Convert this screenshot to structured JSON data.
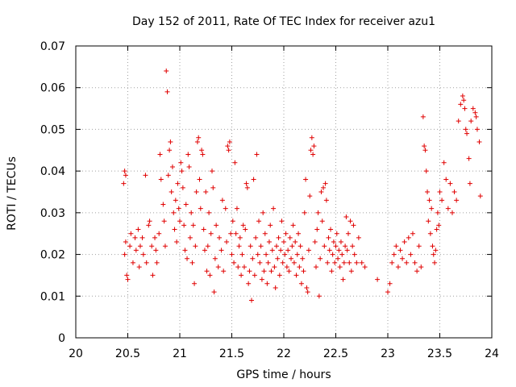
{
  "chart_data": {
    "type": "scatter",
    "title": "Day 152 of 2011, Rate Of TEC Index for receiver azu1",
    "xlabel": "GPS time / hours",
    "ylabel": "ROTI / TECUs",
    "xlim": [
      20,
      24
    ],
    "ylim": [
      0,
      0.07
    ],
    "x_ticks": [
      "20",
      "20.5",
      "21",
      "21.5",
      "22",
      "22.5",
      "23",
      "23.5",
      "24"
    ],
    "y_ticks": [
      "0",
      "0.01",
      "0.02",
      "0.03",
      "0.04",
      "0.05",
      "0.06",
      "0.07"
    ],
    "grid": true,
    "marker": "plus",
    "marker_color": "#e00000",
    "series": [
      {
        "points": [
          [
            20.46,
            0.037
          ],
          [
            20.47,
            0.04
          ],
          [
            20.48,
            0.039
          ],
          [
            20.47,
            0.02
          ],
          [
            20.48,
            0.023
          ],
          [
            20.49,
            0.015
          ],
          [
            20.5,
            0.014
          ],
          [
            20.52,
            0.022
          ],
          [
            20.53,
            0.025
          ],
          [
            20.55,
            0.018
          ],
          [
            20.57,
            0.024
          ],
          [
            20.58,
            0.021
          ],
          [
            20.6,
            0.026
          ],
          [
            20.61,
            0.017
          ],
          [
            20.62,
            0.022
          ],
          [
            20.64,
            0.024
          ],
          [
            20.65,
            0.02
          ],
          [
            20.67,
            0.039
          ],
          [
            20.68,
            0.018
          ],
          [
            20.7,
            0.027
          ],
          [
            20.71,
            0.028
          ],
          [
            20.73,
            0.022
          ],
          [
            20.74,
            0.015
          ],
          [
            20.76,
            0.024
          ],
          [
            20.77,
            0.021
          ],
          [
            20.78,
            0.018
          ],
          [
            20.8,
            0.025
          ],
          [
            20.81,
            0.044
          ],
          [
            20.82,
            0.038
          ],
          [
            20.84,
            0.032
          ],
          [
            20.85,
            0.028
          ],
          [
            20.86,
            0.022
          ],
          [
            20.87,
            0.064
          ],
          [
            20.88,
            0.059
          ],
          [
            20.89,
            0.039
          ],
          [
            20.9,
            0.045
          ],
          [
            20.91,
            0.047
          ],
          [
            20.92,
            0.035
          ],
          [
            20.93,
            0.041
          ],
          [
            20.94,
            0.03
          ],
          [
            20.95,
            0.026
          ],
          [
            20.96,
            0.033
          ],
          [
            20.97,
            0.023
          ],
          [
            20.98,
            0.037
          ],
          [
            20.99,
            0.031
          ],
          [
            21.0,
            0.028
          ],
          [
            21.01,
            0.042
          ],
          [
            21.02,
            0.04
          ],
          [
            21.03,
            0.036
          ],
          [
            21.04,
            0.027
          ],
          [
            21.05,
            0.021
          ],
          [
            21.06,
            0.032
          ],
          [
            21.07,
            0.019
          ],
          [
            21.08,
            0.044
          ],
          [
            21.09,
            0.041
          ],
          [
            21.1,
            0.024
          ],
          [
            21.11,
            0.03
          ],
          [
            21.12,
            0.018
          ],
          [
            21.13,
            0.027
          ],
          [
            21.14,
            0.013
          ],
          [
            21.15,
            0.022
          ],
          [
            21.16,
            0.035
          ],
          [
            21.17,
            0.047
          ],
          [
            21.18,
            0.048
          ],
          [
            21.19,
            0.038
          ],
          [
            21.2,
            0.031
          ],
          [
            21.21,
            0.045
          ],
          [
            21.22,
            0.044
          ],
          [
            21.23,
            0.026
          ],
          [
            21.24,
            0.021
          ],
          [
            21.25,
            0.035
          ],
          [
            21.26,
            0.016
          ],
          [
            21.27,
            0.022
          ],
          [
            21.28,
            0.03
          ],
          [
            21.29,
            0.015
          ],
          [
            21.3,
            0.025
          ],
          [
            21.31,
            0.04
          ],
          [
            21.32,
            0.036
          ],
          [
            21.33,
            0.011
          ],
          [
            21.34,
            0.019
          ],
          [
            21.35,
            0.027
          ],
          [
            21.37,
            0.017
          ],
          [
            21.38,
            0.024
          ],
          [
            21.4,
            0.021
          ],
          [
            21.41,
            0.033
          ],
          [
            21.42,
            0.016
          ],
          [
            21.44,
            0.031
          ],
          [
            21.45,
            0.023
          ],
          [
            21.46,
            0.046
          ],
          [
            21.47,
            0.045
          ],
          [
            21.48,
            0.047
          ],
          [
            21.49,
            0.025
          ],
          [
            21.5,
            0.02
          ],
          [
            21.51,
            0.028
          ],
          [
            21.52,
            0.018
          ],
          [
            21.53,
            0.042
          ],
          [
            21.54,
            0.025
          ],
          [
            21.55,
            0.031
          ],
          [
            21.56,
            0.017
          ],
          [
            21.57,
            0.022
          ],
          [
            21.58,
            0.024
          ],
          [
            21.59,
            0.015
          ],
          [
            21.6,
            0.02
          ],
          [
            21.61,
            0.027
          ],
          [
            21.62,
            0.017
          ],
          [
            21.63,
            0.026
          ],
          [
            21.64,
            0.037
          ],
          [
            21.65,
            0.036
          ],
          [
            21.66,
            0.013
          ],
          [
            21.67,
            0.016
          ],
          [
            21.68,
            0.022
          ],
          [
            21.69,
            0.009
          ],
          [
            21.7,
            0.019
          ],
          [
            21.71,
            0.038
          ],
          [
            21.72,
            0.015
          ],
          [
            21.73,
            0.024
          ],
          [
            21.74,
            0.044
          ],
          [
            21.75,
            0.02
          ],
          [
            21.76,
            0.028
          ],
          [
            21.77,
            0.018
          ],
          [
            21.78,
            0.022
          ],
          [
            21.79,
            0.014
          ],
          [
            21.8,
            0.03
          ],
          [
            21.81,
            0.016
          ],
          [
            21.82,
            0.025
          ],
          [
            21.83,
            0.02
          ],
          [
            21.84,
            0.013
          ],
          [
            21.85,
            0.018
          ],
          [
            21.86,
            0.023
          ],
          [
            21.87,
            0.027
          ],
          [
            21.88,
            0.016
          ],
          [
            21.89,
            0.021
          ],
          [
            21.9,
            0.031
          ],
          [
            21.91,
            0.017
          ],
          [
            21.92,
            0.012
          ],
          [
            21.93,
            0.022
          ],
          [
            21.94,
            0.019
          ],
          [
            21.95,
            0.024
          ],
          [
            21.96,
            0.015
          ],
          [
            21.97,
            0.021
          ],
          [
            21.98,
            0.028
          ],
          [
            21.99,
            0.018
          ],
          [
            22.0,
            0.023
          ],
          [
            22.01,
            0.02
          ],
          [
            22.02,
            0.025
          ],
          [
            22.03,
            0.017
          ],
          [
            22.04,
            0.021
          ],
          [
            22.05,
            0.016
          ],
          [
            22.06,
            0.024
          ],
          [
            22.07,
            0.019
          ],
          [
            22.08,
            0.022
          ],
          [
            22.09,
            0.027
          ],
          [
            22.1,
            0.018
          ],
          [
            22.11,
            0.023
          ],
          [
            22.12,
            0.015
          ],
          [
            22.13,
            0.02
          ],
          [
            22.14,
            0.025
          ],
          [
            22.15,
            0.017
          ],
          [
            22.16,
            0.022
          ],
          [
            22.17,
            0.013
          ],
          [
            22.18,
            0.019
          ],
          [
            22.19,
            0.016
          ],
          [
            22.2,
            0.03
          ],
          [
            22.21,
            0.038
          ],
          [
            22.22,
            0.012
          ],
          [
            22.23,
            0.011
          ],
          [
            22.24,
            0.021
          ],
          [
            22.25,
            0.034
          ],
          [
            22.26,
            0.045
          ],
          [
            22.27,
            0.048
          ],
          [
            22.28,
            0.044
          ],
          [
            22.29,
            0.046
          ],
          [
            22.3,
            0.023
          ],
          [
            22.31,
            0.017
          ],
          [
            22.32,
            0.026
          ],
          [
            22.33,
            0.03
          ],
          [
            22.34,
            0.01
          ],
          [
            22.35,
            0.019
          ],
          [
            22.36,
            0.035
          ],
          [
            22.37,
            0.028
          ],
          [
            22.38,
            0.036
          ],
          [
            22.39,
            0.022
          ],
          [
            22.4,
            0.037
          ],
          [
            22.41,
            0.033
          ],
          [
            22.42,
            0.018
          ],
          [
            22.43,
            0.024
          ],
          [
            22.44,
            0.021
          ],
          [
            22.45,
            0.026
          ],
          [
            22.46,
            0.016
          ],
          [
            22.47,
            0.02
          ],
          [
            22.48,
            0.023
          ],
          [
            22.49,
            0.018
          ],
          [
            22.5,
            0.022
          ],
          [
            22.51,
            0.025
          ],
          [
            22.52,
            0.019
          ],
          [
            22.53,
            0.021
          ],
          [
            22.54,
            0.017
          ],
          [
            22.55,
            0.023
          ],
          [
            22.56,
            0.02
          ],
          [
            22.57,
            0.014
          ],
          [
            22.58,
            0.018
          ],
          [
            22.59,
            0.022
          ],
          [
            22.6,
            0.029
          ],
          [
            22.61,
            0.021
          ],
          [
            22.62,
            0.025
          ],
          [
            22.63,
            0.018
          ],
          [
            22.64,
            0.028
          ],
          [
            22.65,
            0.016
          ],
          [
            22.66,
            0.022
          ],
          [
            22.67,
            0.027
          ],
          [
            22.68,
            0.02
          ],
          [
            22.7,
            0.018
          ],
          [
            22.72,
            0.024
          ],
          [
            22.75,
            0.018
          ],
          [
            22.78,
            0.017
          ],
          [
            22.9,
            0.014
          ],
          [
            23.0,
            0.011
          ],
          [
            23.02,
            0.013
          ],
          [
            23.04,
            0.018
          ],
          [
            23.06,
            0.02
          ],
          [
            23.08,
            0.022
          ],
          [
            23.1,
            0.017
          ],
          [
            23.12,
            0.021
          ],
          [
            23.14,
            0.019
          ],
          [
            23.16,
            0.023
          ],
          [
            23.18,
            0.018
          ],
          [
            23.2,
            0.024
          ],
          [
            23.22,
            0.02
          ],
          [
            23.24,
            0.025
          ],
          [
            23.26,
            0.018
          ],
          [
            23.28,
            0.016
          ],
          [
            23.3,
            0.022
          ],
          [
            23.32,
            0.017
          ],
          [
            23.34,
            0.053
          ],
          [
            23.35,
            0.046
          ],
          [
            23.36,
            0.045
          ],
          [
            23.37,
            0.04
          ],
          [
            23.38,
            0.035
          ],
          [
            23.39,
            0.028
          ],
          [
            23.4,
            0.033
          ],
          [
            23.41,
            0.025
          ],
          [
            23.42,
            0.031
          ],
          [
            23.43,
            0.022
          ],
          [
            23.44,
            0.02
          ],
          [
            23.45,
            0.018
          ],
          [
            23.46,
            0.021
          ],
          [
            23.47,
            0.026
          ],
          [
            23.48,
            0.03
          ],
          [
            23.49,
            0.027
          ],
          [
            23.5,
            0.035
          ],
          [
            23.52,
            0.033
          ],
          [
            23.54,
            0.042
          ],
          [
            23.56,
            0.038
          ],
          [
            23.58,
            0.031
          ],
          [
            23.6,
            0.037
          ],
          [
            23.62,
            0.03
          ],
          [
            23.64,
            0.035
          ],
          [
            23.66,
            0.033
          ],
          [
            23.68,
            0.052
          ],
          [
            23.7,
            0.056
          ],
          [
            23.72,
            0.058
          ],
          [
            23.73,
            0.057
          ],
          [
            23.74,
            0.055
          ],
          [
            23.75,
            0.05
          ],
          [
            23.76,
            0.049
          ],
          [
            23.78,
            0.043
          ],
          [
            23.79,
            0.037
          ],
          [
            23.8,
            0.052
          ],
          [
            23.82,
            0.055
          ],
          [
            23.84,
            0.054
          ],
          [
            23.85,
            0.053
          ],
          [
            23.86,
            0.05
          ],
          [
            23.88,
            0.047
          ],
          [
            23.89,
            0.034
          ]
        ]
      }
    ]
  }
}
